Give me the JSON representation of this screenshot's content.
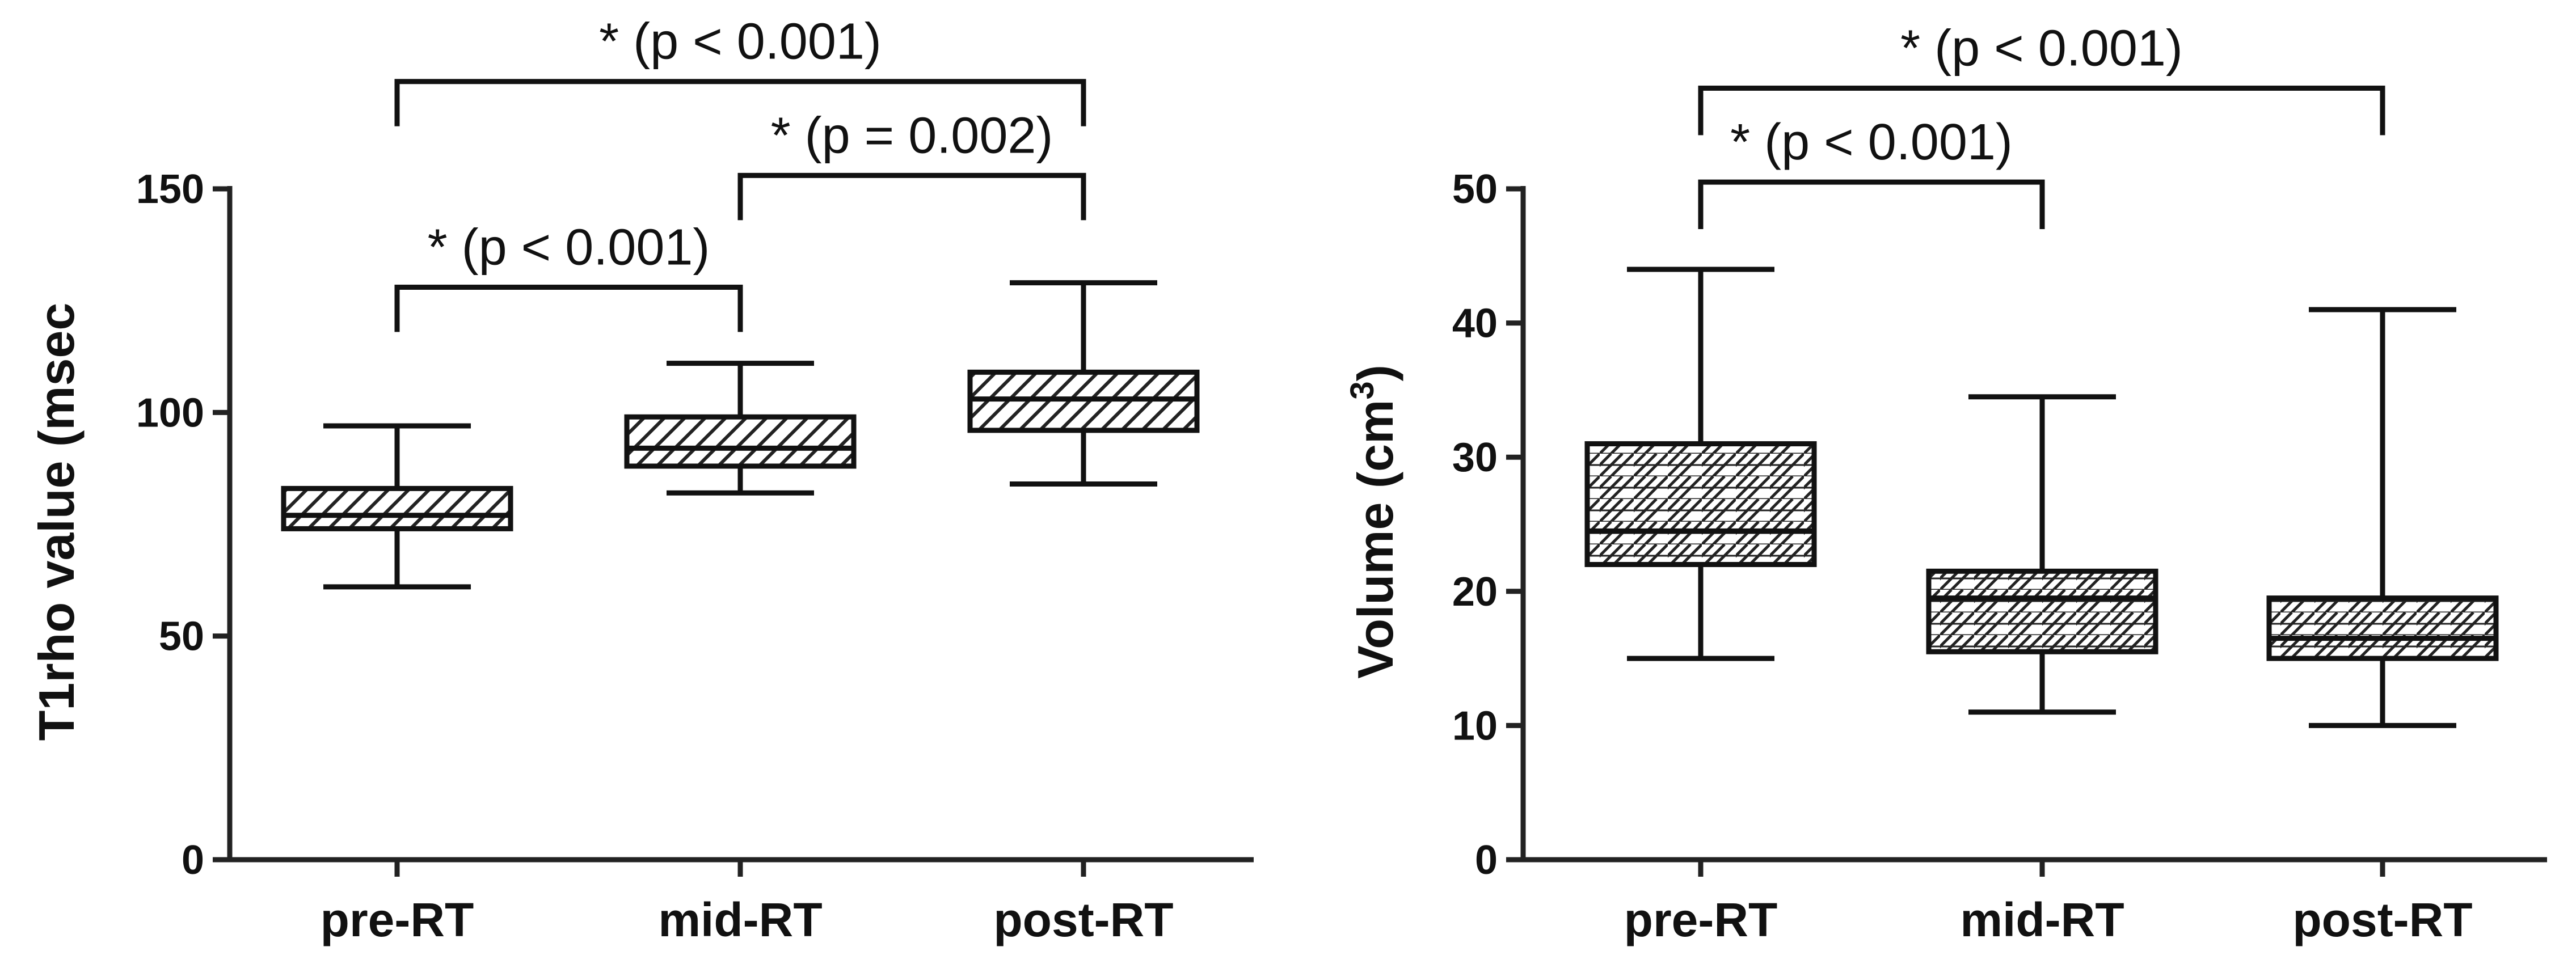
{
  "chart_data": [
    {
      "type": "box",
      "xlabel": "",
      "ylabel": "T1rho value (msec",
      "ylim": [
        0,
        150
      ],
      "yticks": [
        0,
        50,
        100,
        150
      ],
      "categories": [
        "pre-RT",
        "mid-RT",
        "post-RT"
      ],
      "boxes": [
        {
          "min": 61,
          "q1": 74,
          "median": 77,
          "q3": 83,
          "max": 97
        },
        {
          "min": 82,
          "q1": 88,
          "median": 92,
          "q3": 99,
          "max": 111
        },
        {
          "min": 84,
          "q1": 96,
          "median": 103,
          "q3": 109,
          "max": 129
        }
      ],
      "significance": [
        {
          "from": 0,
          "to": 1,
          "text": "* (p < 0.001)",
          "level": 128,
          "drop": 10
        },
        {
          "from": 1,
          "to": 2,
          "text": "* (p = 0.002)",
          "level": 153,
          "drop": 10
        },
        {
          "from": 0,
          "to": 2,
          "text": "* (p < 0.001)",
          "level": 174,
          "drop": 10
        }
      ],
      "box_pattern": "diagonal-hatch",
      "grid": false
    },
    {
      "type": "box",
      "xlabel": "",
      "ylabel": "Volume (cm",
      "ylabel_superscript": "3",
      "ylabel_suffix": ")",
      "ylim": [
        0,
        50
      ],
      "yticks": [
        0,
        10,
        20,
        30,
        40,
        50
      ],
      "categories": [
        "pre-RT",
        "mid-RT",
        "post-RT"
      ],
      "boxes": [
        {
          "min": 15,
          "q1": 22,
          "median": 24.5,
          "q3": 31,
          "max": 44
        },
        {
          "min": 11,
          "q1": 15.5,
          "median": 19.5,
          "q3": 21.5,
          "max": 34.5
        },
        {
          "min": 10,
          "q1": 15,
          "median": 16.5,
          "q3": 19.5,
          "max": 41
        }
      ],
      "significance": [
        {
          "from": 0,
          "to": 1,
          "text": "* (p < 0.001)",
          "level": 50.5,
          "drop": 3.5
        },
        {
          "from": 0,
          "to": 2,
          "text": "* (p < 0.001)",
          "level": 57.5,
          "drop": 3.5
        }
      ],
      "box_pattern": "brick-hatch",
      "grid": false
    }
  ]
}
